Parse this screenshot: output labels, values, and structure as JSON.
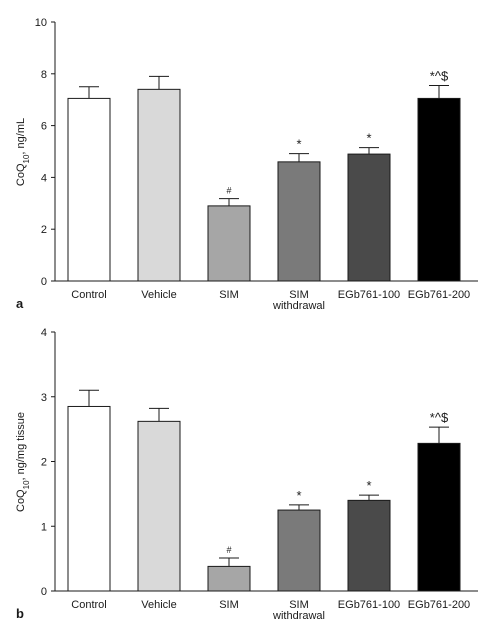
{
  "chart_data": [
    {
      "type": "bar",
      "panel": "a",
      "ylabel": "CoQ10, ng/mL",
      "ylabel_parts": {
        "base": "CoQ",
        "sub": "10",
        "rest": ", ng/mL"
      },
      "ylim": [
        0,
        10
      ],
      "yticks": [
        0,
        2,
        4,
        6,
        8,
        10
      ],
      "categories": [
        {
          "lines": [
            "Control"
          ]
        },
        {
          "lines": [
            "Vehicle"
          ]
        },
        {
          "lines": [
            "SIM"
          ]
        },
        {
          "lines": [
            "SIM",
            "withdrawal"
          ]
        },
        {
          "lines": [
            "EGb761-100"
          ]
        },
        {
          "lines": [
            "EGb761-200"
          ]
        }
      ],
      "values": [
        7.05,
        7.4,
        2.9,
        4.6,
        4.9,
        7.05
      ],
      "errors": [
        0.45,
        0.5,
        0.28,
        0.32,
        0.25,
        0.5
      ],
      "annotations": [
        "",
        "",
        "#",
        "*",
        "*",
        "*^$"
      ],
      "colors": [
        "#ffffff",
        "#d9d9d9",
        "#a6a6a6",
        "#7a7a7a",
        "#4a4a4a",
        "#000000"
      ],
      "grid": false,
      "legend": "none"
    },
    {
      "type": "bar",
      "panel": "b",
      "ylabel": "CoQ10, ng/mg tissue",
      "ylabel_parts": {
        "base": "CoQ",
        "sub": "10",
        "rest": ", ng/mg tissue"
      },
      "ylim": [
        0,
        4
      ],
      "yticks": [
        0,
        1,
        2,
        3,
        4
      ],
      "categories": [
        {
          "lines": [
            "Control"
          ]
        },
        {
          "lines": [
            "Vehicle"
          ]
        },
        {
          "lines": [
            "SIM"
          ]
        },
        {
          "lines": [
            "SIM",
            "withdrawal"
          ]
        },
        {
          "lines": [
            "EGb761-100"
          ]
        },
        {
          "lines": [
            "EGb761-200"
          ]
        }
      ],
      "values": [
        2.85,
        2.62,
        0.38,
        1.25,
        1.4,
        2.28
      ],
      "errors": [
        0.25,
        0.2,
        0.13,
        0.08,
        0.08,
        0.25
      ],
      "annotations": [
        "",
        "",
        "#",
        "*",
        "*",
        "*^$"
      ],
      "colors": [
        "#ffffff",
        "#d9d9d9",
        "#a6a6a6",
        "#7a7a7a",
        "#4a4a4a",
        "#000000"
      ],
      "grid": false,
      "legend": "none"
    }
  ]
}
